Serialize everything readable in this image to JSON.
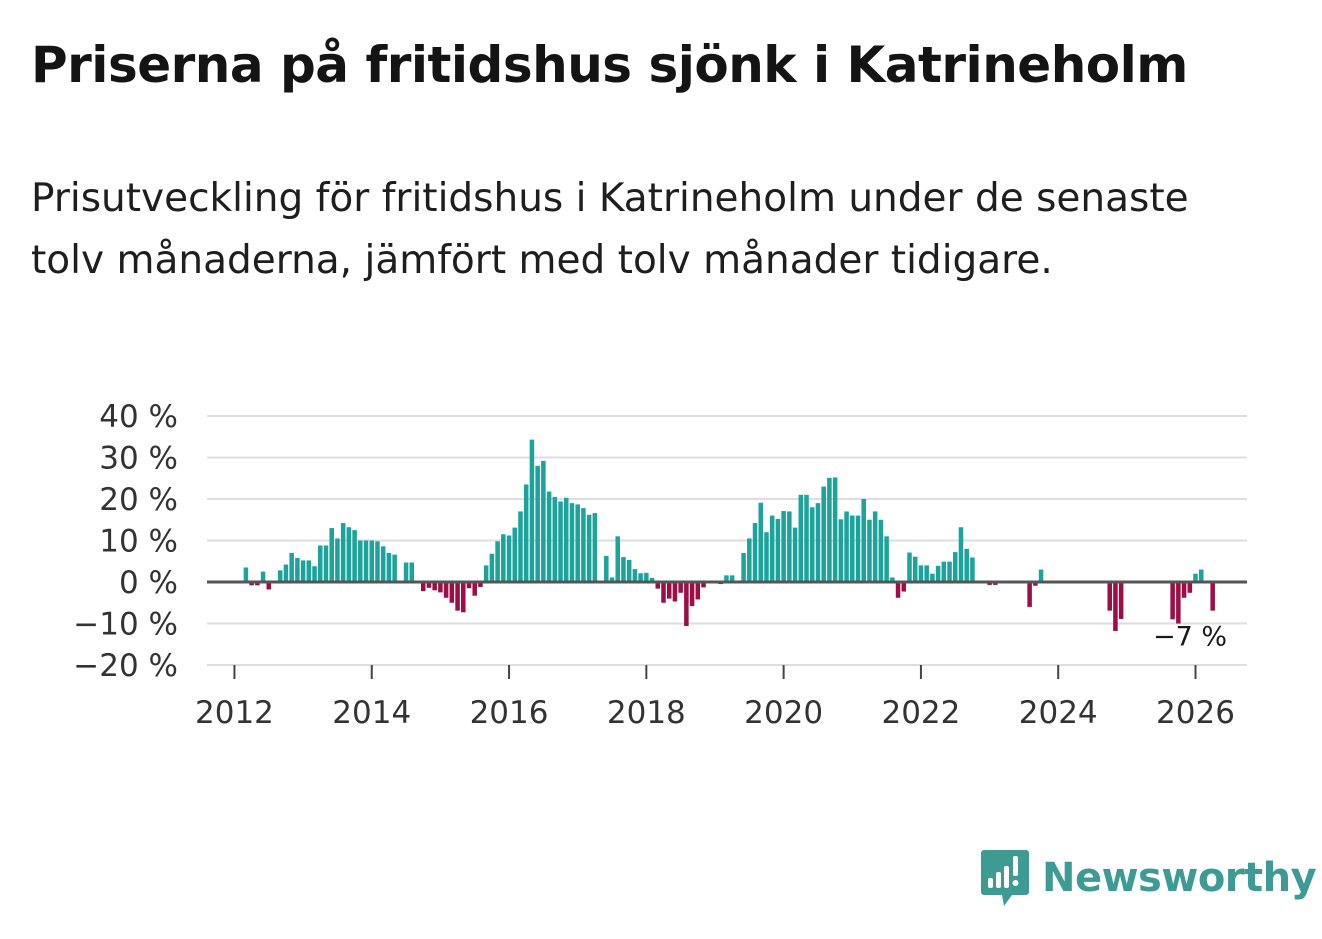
{
  "title": "Priserna på fritidshus sjönk i Katrineholm",
  "subtitle": "Prisutveckling för fritidshus i Katrineholm under de senaste tolv månaderna, jämfört med tolv månader tidigare.",
  "brand": {
    "name": "Newsworthy",
    "icon": "newsworthy-logo-icon",
    "color": "#3d9b93"
  },
  "chart_data": {
    "type": "bar",
    "title": "",
    "xlabel": "",
    "ylabel": "",
    "ylim": [
      -20,
      40
    ],
    "xlim": [
      2011.6,
      2026.75
    ],
    "grid": true,
    "legend": "none",
    "colors": {
      "positive": "#1ba39c",
      "negative": "#9e0e46",
      "gridline": "#dedede",
      "zeroline": "#555555"
    },
    "y_ticks": [
      {
        "value": 40,
        "label": "40 %"
      },
      {
        "value": 30,
        "label": "30 %"
      },
      {
        "value": 20,
        "label": "20 %"
      },
      {
        "value": 10,
        "label": "10 %"
      },
      {
        "value": 0,
        "label": "0 %"
      },
      {
        "value": -10,
        "label": "−10 %"
      },
      {
        "value": -20,
        "label": "−20 %"
      }
    ],
    "x_ticks": [
      {
        "value": 2012,
        "label": "2012"
      },
      {
        "value": 2014,
        "label": "2014"
      },
      {
        "value": 2016,
        "label": "2016"
      },
      {
        "value": 2018,
        "label": "2018"
      },
      {
        "value": 2020,
        "label": "2020"
      },
      {
        "value": 2022,
        "label": "2022"
      },
      {
        "value": 2024,
        "label": "2024"
      },
      {
        "value": 2026,
        "label": "2026"
      }
    ],
    "series": [
      {
        "name": "Prisutveckling",
        "start": {
          "year": 2012,
          "month": 1
        },
        "values": [
          0,
          0,
          3.5,
          -0.8,
          -0.8,
          2.5,
          -1.8,
          0,
          2.8,
          4.2,
          7,
          5.8,
          5.2,
          5.2,
          3.8,
          8.8,
          8.8,
          13,
          10.5,
          14.2,
          13.2,
          12.5,
          10,
          10,
          10,
          9.8,
          8.6,
          7,
          6.6,
          0,
          4.7,
          4.7,
          0,
          -2.2,
          -1.4,
          -2,
          -2.5,
          -3.8,
          -5,
          -6.9,
          -7.3,
          -1.5,
          -3.3,
          -1.2,
          4,
          6.8,
          9.8,
          11.5,
          11.2,
          13.1,
          17,
          23.5,
          34.3,
          28,
          29.2,
          21.8,
          20.5,
          19.4,
          20.3,
          19,
          18.7,
          17.8,
          16.2,
          16.6,
          0,
          6.3,
          1.1,
          11,
          6,
          5.3,
          3.1,
          2.1,
          2.2,
          1,
          -1.6,
          -5,
          -4,
          -4.7,
          -2.6,
          -10.6,
          -5.8,
          -4.2,
          -1.3,
          0,
          0,
          -0.5,
          1.6,
          1.6,
          0,
          7,
          10.5,
          14.2,
          19.1,
          12,
          16,
          15.2,
          17.1,
          17,
          13.1,
          21,
          21,
          18,
          19,
          23,
          25.1,
          25.2,
          15.1,
          17,
          16,
          16,
          20,
          15,
          17,
          15,
          11,
          1.1,
          -3.8,
          -2.3,
          7.1,
          6.1,
          4,
          4,
          2,
          3.9,
          4.9,
          4.9,
          7.2,
          13.2,
          8,
          5.9,
          0,
          0,
          -0.7,
          -0.7,
          0,
          0,
          0,
          0,
          0,
          -6,
          -0.9,
          3,
          0,
          0,
          0,
          0,
          0,
          0,
          0,
          0,
          0,
          0,
          0,
          -6.9,
          -11.8,
          -8.9,
          0,
          0,
          0,
          0,
          0,
          0,
          0,
          0,
          -9,
          -10,
          -3.8,
          -2.6,
          2,
          3,
          0,
          -6.9
        ]
      }
    ],
    "annotations": [
      {
        "text": "−7 %",
        "x": 2025.92,
        "y": -6.9
      }
    ]
  }
}
